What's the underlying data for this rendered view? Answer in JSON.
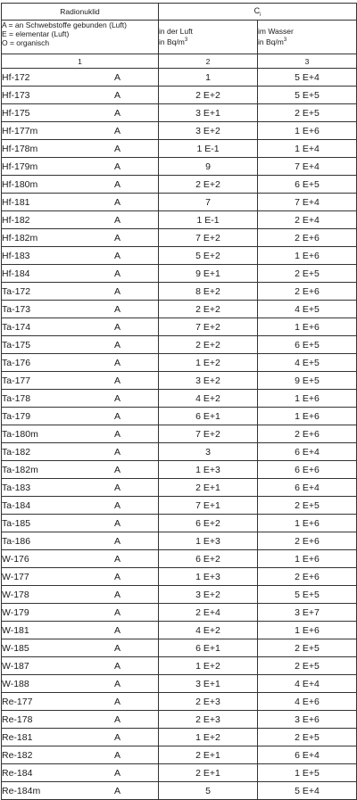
{
  "header": {
    "radionuklid": "Radionuklid",
    "ci_symbol": "C",
    "ci_subscript": "i",
    "legend_lines": [
      "A = an Schwebstoffe gebunden (Luft)",
      "E = elementar (Luft)",
      "O = organisch"
    ],
    "col2_title": "in der Luft",
    "col2_unit_prefix": "in Bq/m",
    "col2_unit_exp": "3",
    "col3_title": "im Wasser",
    "col3_unit_prefix": "in Bq/m",
    "col3_unit_exp": "3",
    "col_numbers": [
      "1",
      "2",
      "3"
    ]
  },
  "rows": [
    {
      "nuclide": "Hf-172",
      "form": "A",
      "air": "1",
      "water": "5 E+4"
    },
    {
      "nuclide": "Hf-173",
      "form": "A",
      "air": "2 E+2",
      "water": "5 E+5"
    },
    {
      "nuclide": "Hf-175",
      "form": "A",
      "air": "3 E+1",
      "water": "2 E+5"
    },
    {
      "nuclide": "Hf-177m",
      "form": "A",
      "air": "3 E+2",
      "water": "1 E+6"
    },
    {
      "nuclide": "Hf-178m",
      "form": "A",
      "air": "1 E-1",
      "water": "1 E+4"
    },
    {
      "nuclide": "Hf-179m",
      "form": "A",
      "air": "9",
      "water": "7 E+4"
    },
    {
      "nuclide": "Hf-180m",
      "form": "A",
      "air": "2 E+2",
      "water": "6 E+5"
    },
    {
      "nuclide": "Hf-181",
      "form": "A",
      "air": "7",
      "water": "7 E+4"
    },
    {
      "nuclide": "Hf-182",
      "form": "A",
      "air": "1 E-1",
      "water": "2 E+4"
    },
    {
      "nuclide": "Hf-182m",
      "form": "A",
      "air": "7 E+2",
      "water": "2 E+6"
    },
    {
      "nuclide": "Hf-183",
      "form": "A",
      "air": "5 E+2",
      "water": "1 E+6"
    },
    {
      "nuclide": "Hf-184",
      "form": "A",
      "air": "9 E+1",
      "water": "2 E+5"
    },
    {
      "nuclide": "Ta-172",
      "form": "A",
      "air": "8 E+2",
      "water": "2 E+6"
    },
    {
      "nuclide": "Ta-173",
      "form": "A",
      "air": "2 E+2",
      "water": "4 E+5"
    },
    {
      "nuclide": "Ta-174",
      "form": "A",
      "air": "7 E+2",
      "water": "1 E+6"
    },
    {
      "nuclide": "Ta-175",
      "form": "A",
      "air": "2 E+2",
      "water": "6 E+5"
    },
    {
      "nuclide": "Ta-176",
      "form": "A",
      "air": "1 E+2",
      "water": "4 E+5"
    },
    {
      "nuclide": "Ta-177",
      "form": "A",
      "air": "3 E+2",
      "water": "9 E+5"
    },
    {
      "nuclide": "Ta-178",
      "form": "A",
      "air": "4 E+2",
      "water": "1 E+6"
    },
    {
      "nuclide": "Ta-179",
      "form": "A",
      "air": "6 E+1",
      "water": "1 E+6"
    },
    {
      "nuclide": "Ta-180m",
      "form": "A",
      "air": "7 E+2",
      "water": "2 E+6"
    },
    {
      "nuclide": "Ta-182",
      "form": "A",
      "air": "3",
      "water": "6 E+4"
    },
    {
      "nuclide": "Ta-182m",
      "form": "A",
      "air": "1 E+3",
      "water": "6 E+6"
    },
    {
      "nuclide": "Ta-183",
      "form": "A",
      "air": "2 E+1",
      "water": "6 E+4"
    },
    {
      "nuclide": "Ta-184",
      "form": "A",
      "air": "7 E+1",
      "water": "2 E+5"
    },
    {
      "nuclide": "Ta-185",
      "form": "A",
      "air": "6 E+2",
      "water": "1 E+6"
    },
    {
      "nuclide": "Ta-186",
      "form": "A",
      "air": "1 E+3",
      "water": "2 E+6"
    },
    {
      "nuclide": "W-176",
      "form": "A",
      "air": "6 E+2",
      "water": "1 E+6"
    },
    {
      "nuclide": "W-177",
      "form": "A",
      "air": "1 E+3",
      "water": "2 E+6"
    },
    {
      "nuclide": "W-178",
      "form": "A",
      "air": "3 E+2",
      "water": "5 E+5"
    },
    {
      "nuclide": "W-179",
      "form": "A",
      "air": "2 E+4",
      "water": "3 E+7"
    },
    {
      "nuclide": "W-181",
      "form": "A",
      "air": "4 E+2",
      "water": "1 E+6"
    },
    {
      "nuclide": "W-185",
      "form": "A",
      "air": "6 E+1",
      "water": "2 E+5"
    },
    {
      "nuclide": "W-187",
      "form": "A",
      "air": "1 E+2",
      "water": "2 E+5"
    },
    {
      "nuclide": "W-188",
      "form": "A",
      "air": "3 E+1",
      "water": "4 E+4"
    },
    {
      "nuclide": "Re-177",
      "form": "A",
      "air": "2 E+3",
      "water": "4 E+6"
    },
    {
      "nuclide": "Re-178",
      "form": "A",
      "air": "2 E+3",
      "water": "3 E+6"
    },
    {
      "nuclide": "Re-181",
      "form": "A",
      "air": "1 E+2",
      "water": "2 E+5"
    },
    {
      "nuclide": "Re-182",
      "form": "A",
      "air": "2 E+1",
      "water": "6 E+4"
    },
    {
      "nuclide": "Re-184",
      "form": "A",
      "air": "2 E+1",
      "water": "1 E+5"
    },
    {
      "nuclide": "Re-184m",
      "form": "A",
      "air": "5",
      "water": "5 E+4"
    }
  ]
}
